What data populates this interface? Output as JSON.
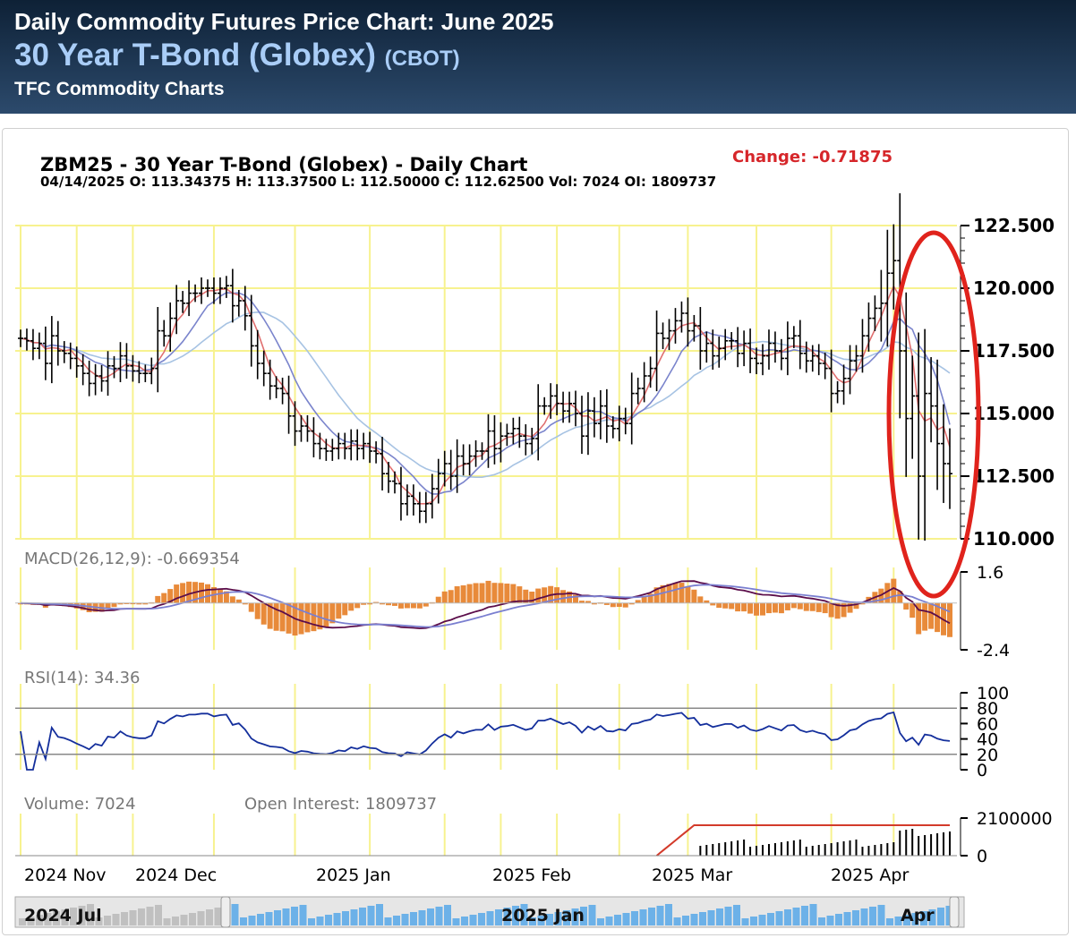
{
  "header": {
    "title": "Daily Commodity Futures Price Chart: June 2025",
    "contract": "30 Year T-Bond (Globex)",
    "exchange": "(CBOT)",
    "brand": "TFC Commodity Charts"
  },
  "chart_data": {
    "type": "candlestick",
    "title": "ZBM25 - 30 Year T-Bond (Globex) - Daily Chart",
    "ohlc_line": "04/14/2025 O: 113.34375 H: 113.37500 L: 112.50000 C: 112.62500 Vol: 7024 OI: 1809737",
    "change_label": "Change: -0.71875",
    "last_bar": {
      "date": "04/14/2025",
      "open": 113.34375,
      "high": 113.375,
      "low": 112.5,
      "close": 112.625,
      "volume": 7024,
      "open_interest": 1809737
    },
    "price_axis": {
      "ticks": [
        122.5,
        120.0,
        117.5,
        115.0,
        112.5,
        110.0
      ],
      "tick_labels": [
        "122.500",
        "120.000",
        "117.500",
        "115.000",
        "112.500",
        "110.000"
      ],
      "ylim": [
        110.0,
        122.5
      ]
    },
    "x_labels": [
      "2024 Nov",
      "2024 Dec",
      "2025 Jan",
      "2025 Feb",
      "2025 Mar",
      "2025 Apr"
    ],
    "closes": [
      118.0,
      117.9,
      117.6,
      117.8,
      117.0,
      118.1,
      117.5,
      117.4,
      117.2,
      116.9,
      116.6,
      116.2,
      116.5,
      116.3,
      116.9,
      116.8,
      117.3,
      116.9,
      116.7,
      116.6,
      116.6,
      116.8,
      118.3,
      118.1,
      118.8,
      119.5,
      119.4,
      119.8,
      119.8,
      120.0,
      120.0,
      119.8,
      120.0,
      120.1,
      119.3,
      119.5,
      118.9,
      117.7,
      117.0,
      116.6,
      116.1,
      116.0,
      115.8,
      114.9,
      114.3,
      114.5,
      114.3,
      113.8,
      113.6,
      113.5,
      113.6,
      113.8,
      113.6,
      113.9,
      113.6,
      113.8,
      113.5,
      113.4,
      112.6,
      112.3,
      112.2,
      111.4,
      111.7,
      111.4,
      111.1,
      111.4,
      112.0,
      112.6,
      113.0,
      112.5,
      113.3,
      113.0,
      113.3,
      113.5,
      113.5,
      114.3,
      113.6,
      114.1,
      114.2,
      114.4,
      114.1,
      113.8,
      114.0,
      115.3,
      115.3,
      115.7,
      115.4,
      115.1,
      115.4,
      115.0,
      114.1,
      115.1,
      114.6,
      115.3,
      114.5,
      114.4,
      114.8,
      114.6,
      115.8,
      116.0,
      116.5,
      116.8,
      118.2,
      118.0,
      118.3,
      118.7,
      119.0,
      118.3,
      118.5,
      117.5,
      117.8,
      117.3,
      117.6,
      117.9,
      117.9,
      117.4,
      117.8,
      117.2,
      117.0,
      117.3,
      117.8,
      117.5,
      117.2,
      118.0,
      118.1,
      117.4,
      117.1,
      117.3,
      117.0,
      116.8,
      115.8,
      115.9,
      116.4,
      117.1,
      117.3,
      118.1,
      118.8,
      119.2,
      119.4,
      120.6,
      121.1,
      117.5,
      114.8,
      115.7,
      112.5,
      115.8,
      115.3,
      113.8,
      113.0,
      112.6
    ],
    "overlays": [
      "moving average (fast)",
      "moving average (medium)",
      "moving average (slow)"
    ],
    "macd": {
      "label": "MACD(26,12,9): -0.669354",
      "tick_labels": [
        "1.6",
        "-2.4"
      ],
      "ylim": [
        -2.4,
        1.6
      ]
    },
    "rsi": {
      "label": "RSI(14): 34.36",
      "tick_labels": [
        "100",
        "80",
        "60",
        "40",
        "20",
        "0"
      ],
      "ylim": [
        0,
        100
      ],
      "reference_lines": [
        80,
        20
      ]
    },
    "volume": {
      "volume_label": "Volume: 7024",
      "oi_label": "Open Interest: 1809737",
      "tick_labels": [
        "2100000",
        "0"
      ]
    },
    "navigator": {
      "labels": [
        "2024 Jul",
        "2025 Jan",
        "Apr"
      ]
    },
    "annotation": "red ellipse around April 2025 price drop"
  },
  "colors": {
    "header_bg": "#1a3352",
    "header_contract": "#a9cdf7",
    "change": "#d6262a",
    "grid": "#f7f28f",
    "ma_fast": "#e06f6f",
    "ma_medium": "#7a84cc",
    "ma_slow": "#a7c3e3",
    "macd_line": "#5b0d4a",
    "signal_line": "#7a7fd0",
    "macd_hist": "#e88a3a",
    "rsi_line": "#142f9c",
    "volume_bar": "#000000",
    "oi_line": "#d33a2a",
    "ellipse": "#e0231c",
    "navigator_fill": "#6cb1e8"
  }
}
